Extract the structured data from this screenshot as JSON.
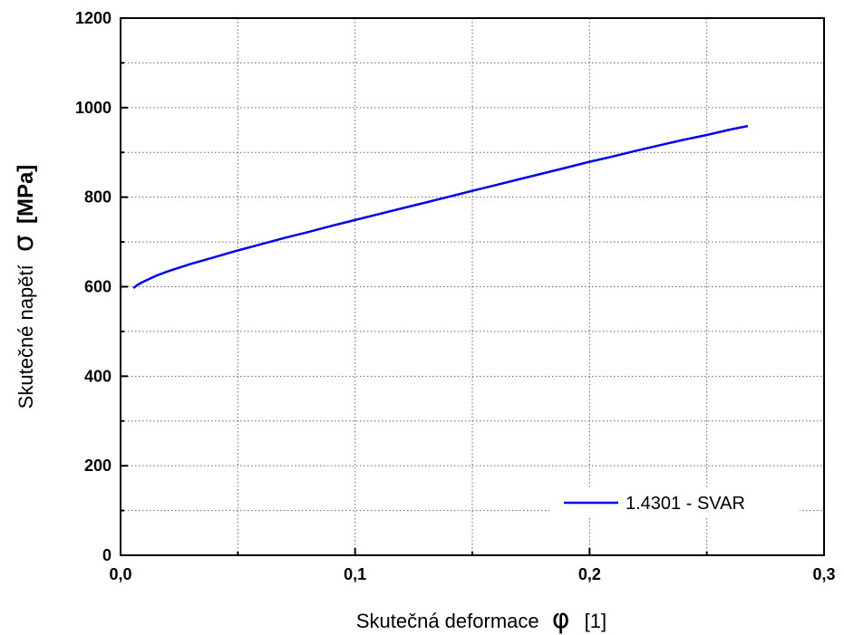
{
  "chart_data": {
    "type": "line",
    "xlabel": {
      "text": "Skutečná deformace",
      "symbol": "φ",
      "unit": "[1]"
    },
    "ylabel": {
      "text": "Skutečné napětí",
      "symbol": "σ",
      "unit": "[MPa]"
    },
    "xlim": [
      0,
      0.3
    ],
    "ylim": [
      0,
      1200
    ],
    "x_ticks": [
      0,
      0.1,
      0.2,
      0.3
    ],
    "x_tick_labels": [
      "0,0",
      "0,1",
      "0,2",
      "0,3"
    ],
    "y_ticks": [
      0,
      200,
      400,
      600,
      800,
      1000,
      1200
    ],
    "y_tick_labels": [
      "0",
      "200",
      "400",
      "600",
      "800",
      "1000",
      "1200"
    ],
    "grid": true,
    "legend_position": "bottom-right",
    "series": [
      {
        "name": "1.4301 - SVAR",
        "color": "#0000ee",
        "points": [
          [
            0.0055,
            597
          ],
          [
            0.0075,
            605
          ],
          [
            0.01,
            612
          ],
          [
            0.015,
            624
          ],
          [
            0.02,
            634
          ],
          [
            0.03,
            651
          ],
          [
            0.04,
            666
          ],
          [
            0.05,
            681
          ],
          [
            0.06,
            695
          ],
          [
            0.07,
            709
          ],
          [
            0.08,
            722
          ],
          [
            0.09,
            736
          ],
          [
            0.1,
            749
          ],
          [
            0.11,
            762
          ],
          [
            0.12,
            775
          ],
          [
            0.13,
            788
          ],
          [
            0.14,
            801
          ],
          [
            0.15,
            814
          ],
          [
            0.16,
            827
          ],
          [
            0.17,
            840
          ],
          [
            0.18,
            853
          ],
          [
            0.19,
            866
          ],
          [
            0.2,
            879
          ],
          [
            0.21,
            891
          ],
          [
            0.22,
            904
          ],
          [
            0.23,
            916
          ],
          [
            0.24,
            928
          ],
          [
            0.25,
            939
          ],
          [
            0.26,
            951
          ],
          [
            0.2675,
            959
          ]
        ]
      }
    ]
  }
}
